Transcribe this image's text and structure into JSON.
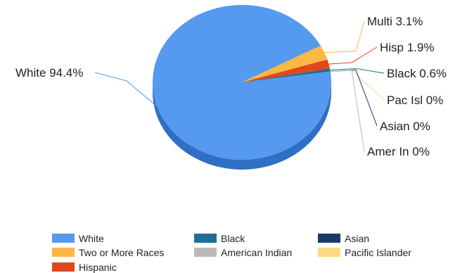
{
  "chart_data": {
    "type": "pie",
    "slices": [
      {
        "key": "white",
        "legend": "White",
        "label": "White 94.4%",
        "value": 94.4,
        "color": "#5599f0",
        "dark": "#2f6fc4"
      },
      {
        "key": "multi",
        "legend": "Two or More Races",
        "label": "Multi 3.1%",
        "value": 3.1,
        "color": "#fbb843",
        "dark": "#d08d1d"
      },
      {
        "key": "hisp",
        "legend": "Hispanic",
        "label": "Hisp 1.9%",
        "value": 1.9,
        "color": "#e2471c",
        "dark": "#b23010"
      },
      {
        "key": "black",
        "legend": "Black",
        "label": "Black 0.6%",
        "value": 0.6,
        "color": "#1f6e94",
        "dark": "#154f6b"
      },
      {
        "key": "pacisl",
        "legend": "Pacific Islander",
        "label": "Pac Isl 0%",
        "value": 0,
        "color": "#fbdb82",
        "dark": "#d9b95e"
      },
      {
        "key": "asian",
        "legend": "Asian",
        "label": "Asian 0%",
        "value": 0,
        "color": "#1b3a6b",
        "dark": "#11284b"
      },
      {
        "key": "amerin",
        "legend": "American Indian",
        "label": "Amer In 0%",
        "value": 0,
        "color": "#b9b9b9",
        "dark": "#8f8f8f"
      }
    ],
    "legend_order": [
      "white",
      "black",
      "asian",
      "multi",
      "amerin",
      "pacisl",
      "hisp"
    ],
    "legend_placement": "bottom"
  }
}
